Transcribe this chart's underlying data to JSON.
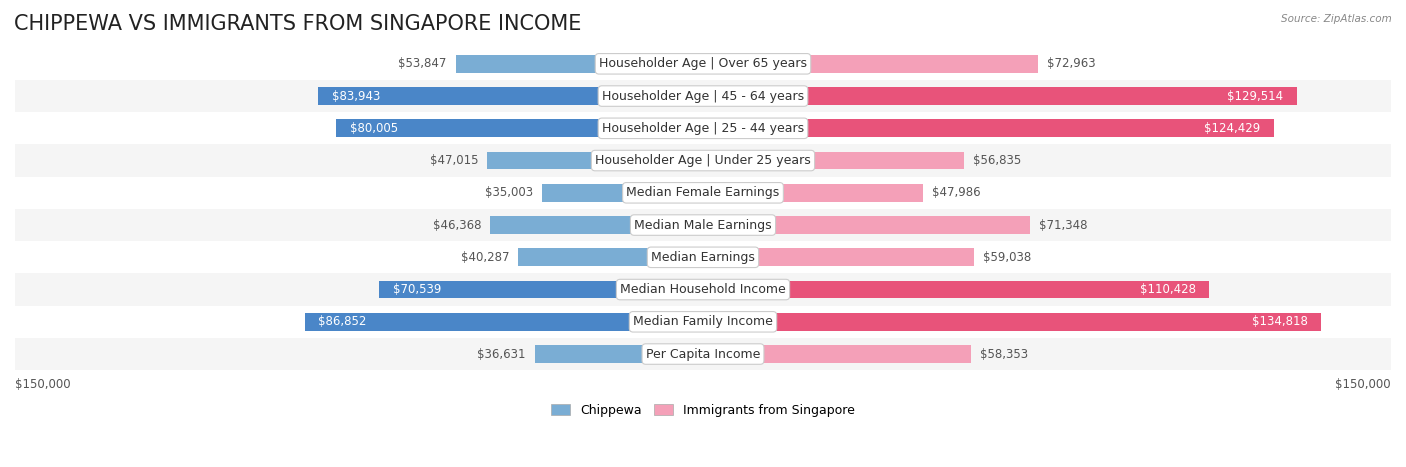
{
  "title": "CHIPPEWA VS IMMIGRANTS FROM SINGAPORE INCOME",
  "source": "Source: ZipAtlas.com",
  "categories": [
    "Per Capita Income",
    "Median Family Income",
    "Median Household Income",
    "Median Earnings",
    "Median Male Earnings",
    "Median Female Earnings",
    "Householder Age | Under 25 years",
    "Householder Age | 25 - 44 years",
    "Householder Age | 45 - 64 years",
    "Householder Age | Over 65 years"
  ],
  "chippewa_values": [
    36631,
    86852,
    70539,
    40287,
    46368,
    35003,
    47015,
    80005,
    83943,
    53847
  ],
  "singapore_values": [
    58353,
    134818,
    110428,
    59038,
    71348,
    47986,
    56835,
    124429,
    129514,
    72963
  ],
  "chippewa_color": "#7aadd4",
  "chippewa_color_dark": "#4a86c8",
  "singapore_color": "#f4a0b8",
  "singapore_color_dark": "#e8537a",
  "max_value": 150000,
  "x_label_left": "$150,000",
  "x_label_right": "$150,000",
  "bar_height": 0.55,
  "row_bg_even": "#f5f5f5",
  "row_bg_odd": "#ffffff",
  "background_color": "#ffffff",
  "title_fontsize": 15,
  "label_fontsize": 9,
  "value_fontsize": 8.5,
  "legend_fontsize": 9
}
